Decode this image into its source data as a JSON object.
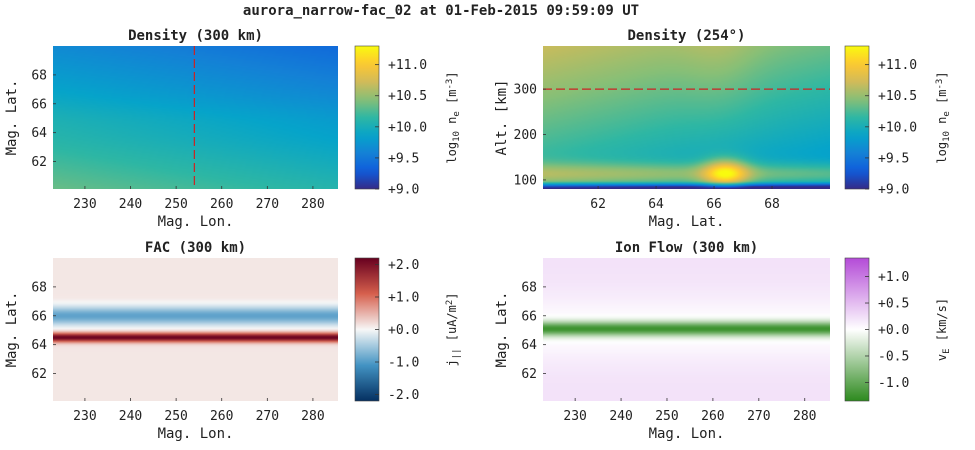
{
  "suptitle": "aurora_narrow-fac_02 at 01-Feb-2015 09:59:09 UT",
  "colors": {
    "red_dash": "#cc2222",
    "viridis": [
      "#440154",
      "#3b528b",
      "#21918c",
      "#5ec962",
      "#fde725"
    ],
    "parula": [
      "#352a87",
      "#0f5cdd",
      "#1481d6",
      "#06a4ca",
      "#2eb7a4",
      "#87bf77",
      "#d1bb59",
      "#fec832",
      "#f9fb0e"
    ],
    "redblue": [
      "#053061",
      "#4393c3",
      "#f7f7f7",
      "#d6604d",
      "#67001f"
    ],
    "purplegreen": [
      "#2d8a1e",
      "#ffffff",
      "#b44bd8"
    ]
  },
  "chart_data": [
    {
      "id": "p1",
      "type": "heatmap",
      "title": "Density (300 km)",
      "xlabel": "Mag. Lon.",
      "ylabel": "Mag. Lat.",
      "xticks": [
        230,
        240,
        250,
        260,
        270,
        280
      ],
      "yticks": [
        62,
        64,
        66,
        68
      ],
      "xlim": [
        223,
        285.5
      ],
      "ylim": [
        60.1,
        70
      ],
      "marker_vline": 254,
      "field": "density_horizontal",
      "colorbar": {
        "label": "log10 ne [m-3]",
        "label_main": "log",
        "label_sub": "10",
        "label_mid": " n",
        "label_sub2": "e",
        "label_tail": " [m",
        "label_sup": "-3",
        "label_end": "]",
        "ticks": [
          "+9.0",
          "+9.5",
          "+10.0",
          "+10.5",
          "+11.0"
        ],
        "tick_values": [
          9.0,
          9.5,
          10.0,
          10.5,
          11.0
        ],
        "range": [
          9.0,
          11.3
        ],
        "colormap": "parula"
      }
    },
    {
      "id": "p2",
      "type": "heatmap",
      "title": "Density (254°)",
      "xlabel": "Mag. Lat.",
      "ylabel": "Alt. [km]",
      "xticks": [
        62,
        64,
        66,
        68
      ],
      "yticks": [
        100,
        200,
        300
      ],
      "xlim": [
        60.1,
        70
      ],
      "ylim": [
        80,
        395
      ],
      "marker_hline": 300,
      "field": "density_vertical",
      "colorbar": {
        "label": "log10 ne [m-3]",
        "label_main": "log",
        "label_sub": "10",
        "label_mid": " n",
        "label_sub2": "e",
        "label_tail": " [m",
        "label_sup": "-3",
        "label_end": "]",
        "ticks": [
          "+9.0",
          "+9.5",
          "+10.0",
          "+10.5",
          "+11.0"
        ],
        "tick_values": [
          9.0,
          9.5,
          10.0,
          10.5,
          11.0
        ],
        "range": [
          9.0,
          11.3
        ],
        "colormap": "parula"
      }
    },
    {
      "id": "p3",
      "type": "heatmap",
      "title": "FAC (300 km)",
      "xlabel": "Mag. Lon.",
      "ylabel": "Mag. Lat.",
      "xticks": [
        230,
        240,
        250,
        260,
        270,
        280
      ],
      "yticks": [
        62,
        64,
        66,
        68
      ],
      "xlim": [
        223,
        285.5
      ],
      "ylim": [
        60.1,
        70
      ],
      "field": "fac",
      "colorbar": {
        "label": "j|| [uA/m2]",
        "label_main": "j",
        "label_sub": "||",
        "label_mid": "",
        "label_sub2": "",
        "label_tail": " [uA/m",
        "label_sup": "2",
        "label_end": "]",
        "ticks": [
          "-2.0",
          "-1.0",
          "+0.0",
          "+1.0",
          "+2.0"
        ],
        "tick_values": [
          -2.0,
          -1.0,
          0.0,
          1.0,
          2.0
        ],
        "range": [
          -2.2,
          2.2
        ],
        "colormap": "redblue"
      }
    },
    {
      "id": "p4",
      "type": "heatmap",
      "title": "Ion Flow (300 km)",
      "xlabel": "Mag. Lon.",
      "ylabel": "Mag. Lat.",
      "xticks": [
        230,
        240,
        250,
        260,
        270,
        280
      ],
      "yticks": [
        62,
        64,
        66,
        68
      ],
      "xlim": [
        223,
        285.5
      ],
      "ylim": [
        60.1,
        70
      ],
      "field": "ionflow",
      "colorbar": {
        "label": "vE [km/s]",
        "label_main": "v",
        "label_sub": "E",
        "label_mid": "",
        "label_sub2": "",
        "label_tail": " [km/s",
        "label_sup": "",
        "label_end": "]",
        "ticks": [
          "-1.0",
          "-0.5",
          "+0.0",
          "+0.5",
          "+1.0"
        ],
        "tick_values": [
          -1.0,
          -0.5,
          0.0,
          0.5,
          1.0
        ],
        "range": [
          -1.35,
          1.35
        ],
        "colormap": "purplegreen"
      }
    }
  ]
}
